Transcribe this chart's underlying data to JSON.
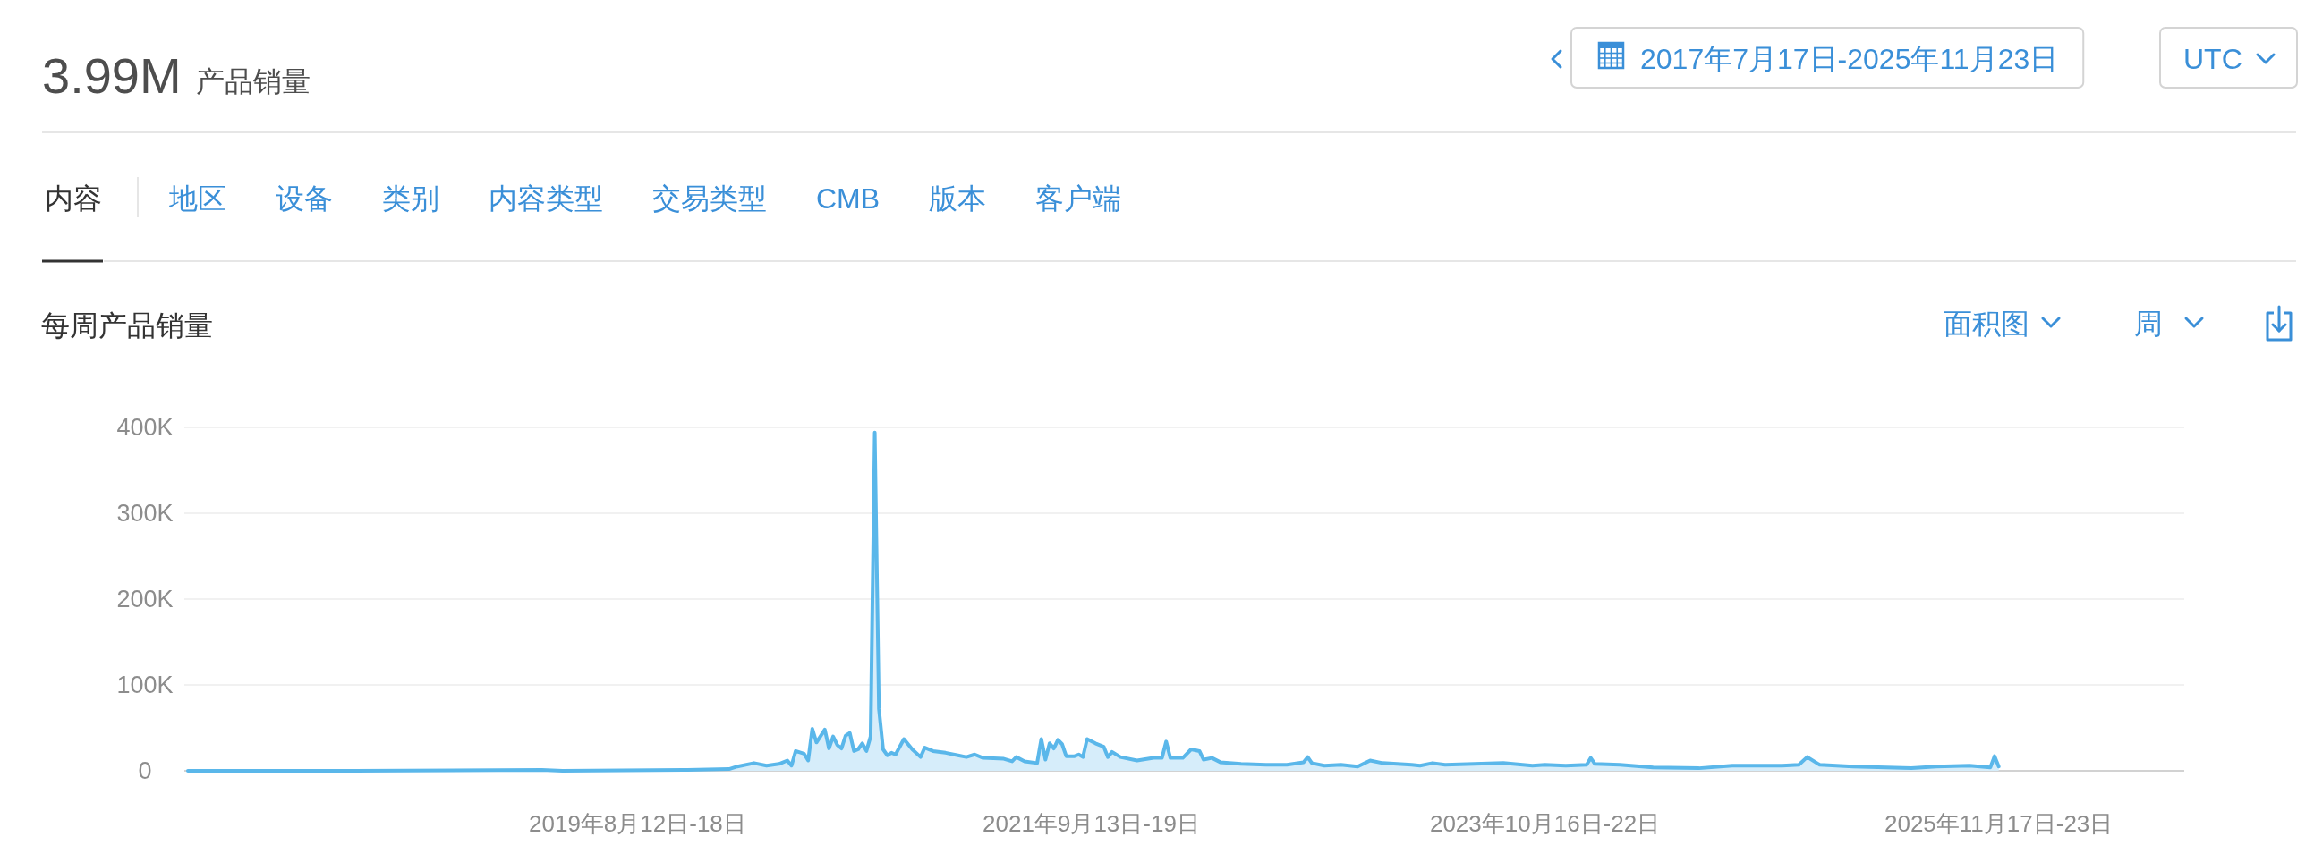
{
  "chart_data": {
    "type": "area",
    "title": "每周产品销量",
    "annotations": [
      "3.99M",
      "产品销量",
      "内容",
      "地区",
      "设备",
      "类别",
      "内容类型",
      "交易类型",
      "CMB",
      "版本",
      "客户端",
      "2017年7月17日-2025年11月23日",
      "UTC",
      "面积图",
      "周"
    ],
    "x": [
      "2017-07-17",
      "2018-04-23",
      "2019-03-04",
      "2019-04-08",
      "2019-11-04",
      "2020-01-13",
      "2020-01-27",
      "2020-02-24",
      "2020-03-16",
      "2020-04-06",
      "2020-04-20",
      "2020-04-27",
      "2020-05-04",
      "2020-05-18",
      "2020-05-25",
      "2020-06-01",
      "2020-06-08",
      "2020-06-22",
      "2020-06-29",
      "2020-07-06",
      "2020-07-13",
      "2020-07-20",
      "2020-07-27",
      "2020-08-03",
      "2020-08-10",
      "2020-08-17",
      "2020-08-24",
      "2020-08-31",
      "2020-09-07",
      "2020-09-14",
      "2020-09-21",
      "2020-09-28",
      "2020-10-05",
      "2020-10-12",
      "2020-10-19",
      "2020-11-02",
      "2020-11-16",
      "2020-11-30",
      "2020-12-07",
      "2020-12-21",
      "2021-01-11",
      "2021-02-01",
      "2021-02-15",
      "2021-03-01",
      "2021-03-15",
      "2021-04-19",
      "2021-05-03",
      "2021-05-10",
      "2021-05-24",
      "2021-06-14",
      "2021-06-21",
      "2021-06-28",
      "2021-07-05",
      "2021-07-12",
      "2021-07-19",
      "2021-07-26",
      "2021-08-02",
      "2021-08-16",
      "2021-08-23",
      "2021-08-30",
      "2021-09-06",
      "2021-09-20",
      "2021-10-04",
      "2021-10-11",
      "2021-10-18",
      "2021-11-01",
      "2021-11-29",
      "2021-12-27",
      "2022-01-10",
      "2022-01-17",
      "2022-01-24",
      "2022-02-14",
      "2022-02-28",
      "2022-03-14",
      "2022-03-21",
      "2022-04-04",
      "2022-04-18",
      "2022-05-23",
      "2022-07-04",
      "2022-08-08",
      "2022-09-05",
      "2022-09-12",
      "2022-09-19",
      "2022-10-10",
      "2022-11-07",
      "2022-12-05",
      "2022-12-26",
      "2023-01-16",
      "2023-03-06",
      "2023-03-20",
      "2023-04-10",
      "2023-05-01",
      "2023-08-07",
      "2023-09-25",
      "2023-10-16",
      "2023-11-20",
      "2023-12-25",
      "2024-01-01",
      "2024-01-08",
      "2024-02-19",
      "2024-04-15",
      "2024-07-01",
      "2024-08-26",
      "2024-11-18",
      "2024-12-16",
      "2024-12-30",
      "2025-01-20",
      "2025-03-17",
      "2025-06-23",
      "2025-08-04",
      "2025-09-29",
      "2025-11-03",
      "2025-11-10",
      "2025-11-17"
    ],
    "values": [
      0,
      0,
      1000,
      0,
      1000,
      2000,
      5000,
      9000,
      6000,
      8000,
      12000,
      6000,
      23000,
      20000,
      12000,
      49000,
      33000,
      48000,
      26000,
      40000,
      30000,
      26000,
      41000,
      44000,
      23000,
      25000,
      32000,
      23000,
      40000,
      394000,
      72000,
      25000,
      18000,
      21000,
      19000,
      37000,
      25000,
      16000,
      27000,
      23000,
      21000,
      18000,
      16000,
      19000,
      15000,
      14000,
      11000,
      16000,
      11000,
      9000,
      37000,
      13000,
      32000,
      26000,
      36000,
      31000,
      17000,
      17000,
      19000,
      16000,
      37000,
      32000,
      28000,
      16000,
      22000,
      16000,
      12000,
      15000,
      15000,
      34000,
      15000,
      15000,
      25000,
      23000,
      13000,
      15000,
      10000,
      8000,
      7000,
      7000,
      10000,
      16000,
      9000,
      6000,
      7000,
      5000,
      12000,
      9000,
      7000,
      6000,
      9000,
      7000,
      9000,
      6000,
      7000,
      6000,
      7000,
      15000,
      8000,
      7000,
      4000,
      3000,
      6000,
      6000,
      7000,
      16000,
      7000,
      5000,
      3000,
      5000,
      6000,
      4000,
      17000,
      5000
    ],
    "color": "#5ab7ea",
    "xlim": [
      "2017-07-11",
      "2026-09-25"
    ],
    "xticks": [
      {
        "value": "2019-08-12",
        "label": "2019年8月12日-18日"
      },
      {
        "value": "2021-09-13",
        "label": "2021年9月13日-19日"
      },
      {
        "value": "2023-10-16",
        "label": "2023年10月16日-22日"
      },
      {
        "value": "2025-11-17",
        "label": "2025年11月17日-23日"
      }
    ],
    "ylim": [
      0,
      400000
    ],
    "yticks": [
      0,
      {
        "value": 100000,
        "label": "100K"
      },
      {
        "value": 200000,
        "label": "200K"
      },
      {
        "value": 300000,
        "label": "300K"
      },
      {
        "value": 400000,
        "label": "400K"
      }
    ],
    "grid": "y"
  }
}
